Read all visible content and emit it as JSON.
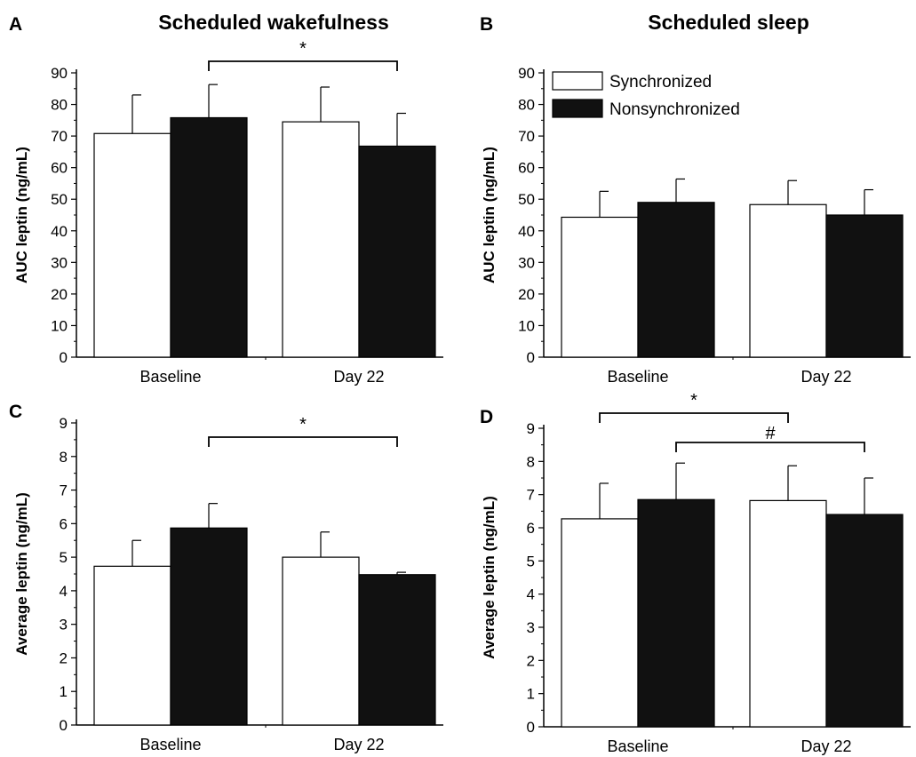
{
  "column_titles": [
    "Scheduled wakefulness",
    "Scheduled sleep"
  ],
  "legend": {
    "items": [
      {
        "label": "Synchronized",
        "color": "#ffffff"
      },
      {
        "label": "Nonsynchronized",
        "color": "#111111"
      }
    ]
  },
  "colors": {
    "synchronized": "#ffffff",
    "nonsynchronized": "#111111",
    "stroke": "#000000"
  },
  "chart_data": [
    {
      "panel": "A",
      "type": "bar",
      "title": "Scheduled wakefulness",
      "ylabel": "AUC leptin (ng/mL)",
      "xlabel": "",
      "ylim": [
        0,
        90
      ],
      "yticks": [
        0,
        10,
        20,
        30,
        40,
        50,
        60,
        70,
        80,
        90
      ],
      "categories": [
        "Baseline",
        "Day 22"
      ],
      "series": [
        {
          "name": "Synchronized",
          "values": [
            70.8,
            74.5
          ],
          "errors": [
            12.2,
            11.0
          ]
        },
        {
          "name": "Nonsynchronized",
          "values": [
            75.8,
            66.8
          ],
          "errors": [
            10.5,
            10.4
          ]
        }
      ],
      "annotations": [
        {
          "label": "*",
          "from": "Baseline Nonsynchronized",
          "to": "Day 22 Nonsynchronized"
        }
      ],
      "legend": false
    },
    {
      "panel": "B",
      "type": "bar",
      "title": "Scheduled sleep",
      "ylabel": "AUC leptin (ng/mL)",
      "xlabel": "",
      "ylim": [
        0,
        90
      ],
      "yticks": [
        0,
        10,
        20,
        30,
        40,
        50,
        60,
        70,
        80,
        90
      ],
      "categories": [
        "Baseline",
        "Day 22"
      ],
      "series": [
        {
          "name": "Synchronized",
          "values": [
            44.3,
            48.3
          ],
          "errors": [
            8.2,
            7.6
          ]
        },
        {
          "name": "Nonsynchronized",
          "values": [
            49.0,
            45.0
          ],
          "errors": [
            7.4,
            8.0
          ]
        }
      ],
      "annotations": [],
      "legend": "top-left"
    },
    {
      "panel": "C",
      "type": "bar",
      "title": "",
      "ylabel": "Average leptin (ng/mL)",
      "xlabel": "",
      "ylim": [
        0,
        9
      ],
      "yticks": [
        0,
        1,
        2,
        3,
        4,
        5,
        6,
        7,
        8,
        9
      ],
      "categories": [
        "Baseline",
        "Day 22"
      ],
      "series": [
        {
          "name": "Synchronized",
          "values": [
            4.73,
            5.0
          ],
          "errors": [
            0.77,
            0.75
          ]
        },
        {
          "name": "Nonsynchronized",
          "values": [
            5.87,
            4.48
          ],
          "errors": [
            0.73,
            0.07
          ]
        }
      ],
      "annotations": [
        {
          "label": "*",
          "from": "Baseline Nonsynchronized",
          "to": "Day 22 Nonsynchronized"
        }
      ],
      "legend": false
    },
    {
      "panel": "D",
      "type": "bar",
      "title": "",
      "ylabel": "Average leptin (ng/mL)",
      "xlabel": "",
      "ylim": [
        0,
        9
      ],
      "yticks": [
        0,
        1,
        2,
        3,
        4,
        5,
        6,
        7,
        8,
        9
      ],
      "categories": [
        "Baseline",
        "Day 22"
      ],
      "series": [
        {
          "name": "Synchronized",
          "values": [
            6.27,
            6.82
          ],
          "errors": [
            1.07,
            1.05
          ]
        },
        {
          "name": "Nonsynchronized",
          "values": [
            6.85,
            6.4
          ],
          "errors": [
            1.1,
            1.1
          ]
        }
      ],
      "annotations": [
        {
          "label": "*",
          "from": "Baseline Synchronized",
          "to": "Day 22 Synchronized"
        },
        {
          "label": "#",
          "from": "Baseline Nonsynchronized",
          "to": "Day 22 Nonsynchronized"
        }
      ],
      "legend": false
    }
  ]
}
